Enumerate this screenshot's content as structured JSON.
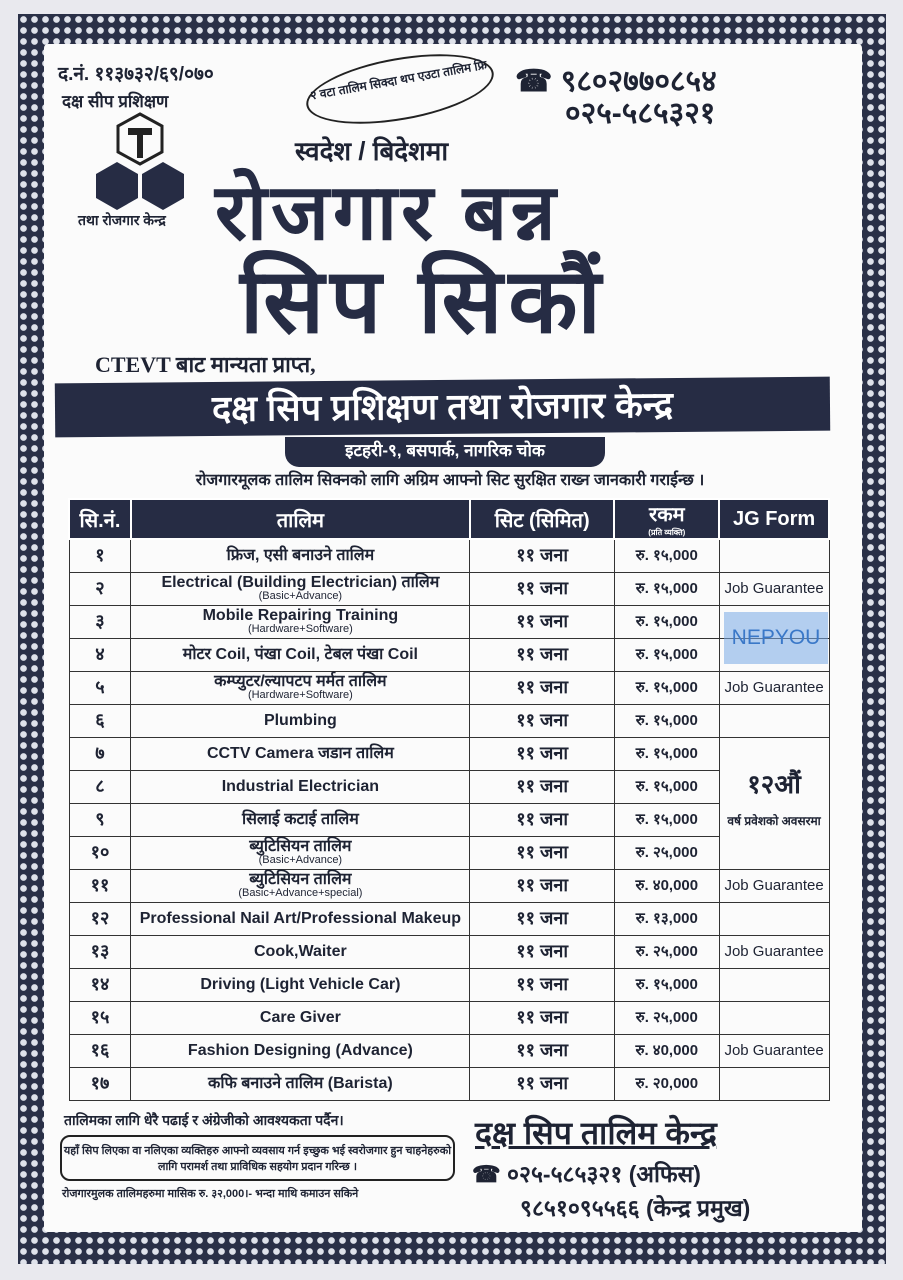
{
  "header": {
    "reg_no": "द.नं. ११३७३२/६९/०७०",
    "offer": "२ वटा तालिम सिक्दा थप एउटा तालिम फ्रि",
    "phones": [
      "९८०२७७०८५४",
      "०२५-५८५३२१"
    ],
    "logo_text": "दक्ष सीप प्रशिक्षण",
    "logo_sub": "तथा रोजगार केन्द्र",
    "abroad": "स्वदेश / बिदेशमा",
    "headline1": "रोजगार बन्न",
    "headline2": "सिप सिकौं"
  },
  "org": {
    "accreditation": "CTEVT बाट मान्यता प्राप्त,",
    "name": "दक्ष सिप प्रशिक्षण तथा रोजगार केन्द्र",
    "address": "इटहरी-९, बसपार्क, नागरिक चोक",
    "notice": "रोजगारमूलक तालिम सिक्नको लागि अग्रिम आफ्नो सिट सुरक्षित राख्न जानकारी गराईन्छ ।"
  },
  "table": {
    "headers": {
      "sn": "सि.नं.",
      "course": "तालिम",
      "seats": "सिट (सिमित)",
      "fee": "रकम",
      "fee_sub": "(प्रति व्यक्ति)",
      "jg": "JG Form"
    },
    "rows": [
      {
        "sn": "१",
        "course": "फ्रिज, एसी बनाउने तालिम",
        "sub": "",
        "seats": "११ जना",
        "fee": "रु. १५,000",
        "jg": ""
      },
      {
        "sn": "२",
        "course": "Electrical (Building Electrician) तालिम",
        "sub": "(Basic+Advance)",
        "seats": "११ जना",
        "fee": "रु. १५,000",
        "jg": "Job Guarantee"
      },
      {
        "sn": "३",
        "course": "Mobile Repairing Training",
        "sub": "(Hardware+Software)",
        "seats": "११ जना",
        "fee": "रु. १५,000",
        "jg": ""
      },
      {
        "sn": "४",
        "course": "मोटर Coil, पंखा Coil, टेबल पंखा Coil",
        "sub": "",
        "seats": "११ जना",
        "fee": "रु. १५,000",
        "jg": ""
      },
      {
        "sn": "५",
        "course": "कम्प्युटर/ल्यापटप मर्मत तालिम",
        "sub": "(Hardware+Software)",
        "seats": "११ जना",
        "fee": "रु. १५,000",
        "jg": "Job Guarantee"
      },
      {
        "sn": "६",
        "course": "Plumbing",
        "sub": "",
        "seats": "११ जना",
        "fee": "रु. १५,000",
        "jg": ""
      },
      {
        "sn": "७",
        "course": "CCTV Camera जडान तालिम",
        "sub": "",
        "seats": "११ जना",
        "fee": "रु. १५,000",
        "jg": ""
      },
      {
        "sn": "८",
        "course": "Industrial Electrician",
        "sub": "",
        "seats": "११ जना",
        "fee": "रु. १५,000",
        "jg": ""
      },
      {
        "sn": "९",
        "course": "सिलाई कटाई तालिम",
        "sub": "",
        "seats": "११ जना",
        "fee": "रु. १५,000",
        "jg": ""
      },
      {
        "sn": "१०",
        "course": "ब्युटिसियन तालिम",
        "sub": "(Basic+Advance)",
        "seats": "११ जना",
        "fee": "रु. २५,000",
        "jg": ""
      },
      {
        "sn": "११",
        "course": "ब्युटिसियन तालिम",
        "sub": "(Basic+Advance+special)",
        "seats": "११ जना",
        "fee": "रु. ४0,000",
        "jg": "Job Guarantee"
      },
      {
        "sn": "१२",
        "course": "Professional Nail Art/Professional Makeup",
        "sub": "",
        "seats": "११ जना",
        "fee": "रु. १३,000",
        "jg": ""
      },
      {
        "sn": "१३",
        "course": "Cook,Waiter",
        "sub": "",
        "seats": "११ जना",
        "fee": "रु. २५,000",
        "jg": "Job Guarantee"
      },
      {
        "sn": "१४",
        "course": "Driving (Light Vehicle Car)",
        "sub": "",
        "seats": "११ जना",
        "fee": "रु. १५,000",
        "jg": ""
      },
      {
        "sn": "१५",
        "course": "Care Giver",
        "sub": "",
        "seats": "११ जना",
        "fee": "रु. २५,000",
        "jg": ""
      },
      {
        "sn": "१६",
        "course": "Fashion Designing (Advance)",
        "sub": "",
        "seats": "११ जना",
        "fee": "रु. ४0,000",
        "jg": "Job Guarantee"
      },
      {
        "sn": "१७",
        "course": "कफि बनाउने तालिम (Barista)",
        "sub": "",
        "seats": "११ जना",
        "fee": "रु. २0,000",
        "jg": ""
      }
    ],
    "anniversary": "१२औं",
    "anniversary_sub": "वर्ष प्रवेशको अवसरमा"
  },
  "watermark": "NEPYOU",
  "footer": {
    "note1": "तालिमका लागि धेरै पढाई र अंग्रेजीको आवश्यकता पर्दैन।",
    "box": "यहाँ सिप लिएका वा नलिएका व्यक्तिहरु आफ्नो व्यवसाय गर्न इच्छुक भई स्वरोजगार हुन चाहनेहरुको लागि परामर्श तथा प्राविधिक सहयोग प्रदान गरिन्छ ।",
    "note2": "रोजगारमुलक तालिमहरुमा मासिक रु. ३२,000।- भन्दा माथि कमाउन सकिने",
    "brand": "दक्ष सिप तालिम केन्द्र",
    "phone_office": "०२५-५८५३२१ (अफिस)",
    "phone_chief": "९८५१०९५५६६ (केन्द्र प्रमुख)"
  }
}
